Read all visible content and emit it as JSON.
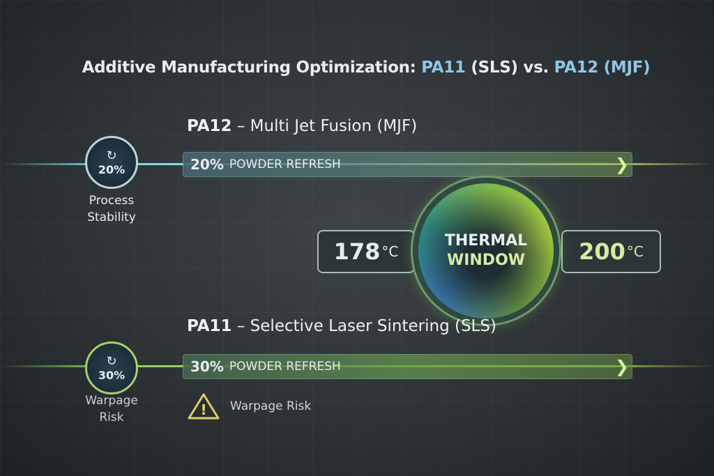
{
  "title": {
    "part1": "Additive Manufacturing Optimization:",
    "pa11": "PA11",
    "sls": "(SLS) vs.",
    "pa12": "PA12",
    "mjf": "(MJF)"
  },
  "pa12": {
    "name": "PA12",
    "process": "– Multi Jet Fusion (MJF)",
    "percent": "20%",
    "bar_value": "20%",
    "bar_label": "POWDER REFRESH",
    "label_line1": "Process",
    "label_line2": "Stability",
    "icon": "powder-refresh-icon",
    "color": "#8fd0e0"
  },
  "thermal": {
    "min": "178",
    "max": "200",
    "unit": "°C",
    "line1": "THERMAL",
    "line2": "WINDOW"
  },
  "pa11": {
    "name": "PA11",
    "process": "– Selective Laser Sintering (SLS)",
    "percent": "30%",
    "bar_value": "30%",
    "bar_label": "POWDER REFRESH",
    "label_line1": "Warpage",
    "label_line2": "Risk",
    "warning": "Warpage Risk",
    "icon": "powder-refresh-icon",
    "color": "#9fd050"
  }
}
